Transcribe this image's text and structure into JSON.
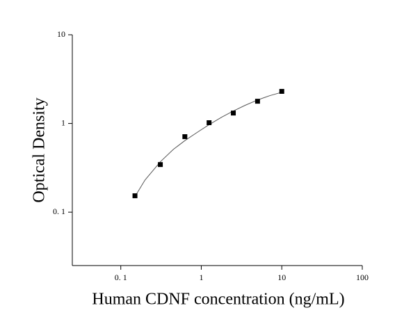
{
  "chart_data": {
    "type": "scatter",
    "x_label": "Human CDNF concentration (ng/mL)",
    "y_label": "Optical Density",
    "log_x": true,
    "log_y": true,
    "xlim": [
      0.025,
      100
    ],
    "ylim": [
      0.025,
      10
    ],
    "xticks": [
      {
        "value": 0.1,
        "label": "0. 1"
      },
      1,
      10,
      100
    ],
    "yticks": [
      {
        "value": 0.1,
        "label": "0. 1"
      },
      1,
      10
    ],
    "color": "#000000",
    "x": [
      0.15,
      0.31,
      0.625,
      1.25,
      2.5,
      5,
      10
    ],
    "values": [
      0.153,
      0.344,
      0.71,
      1.02,
      1.31,
      1.78,
      2.3
    ],
    "curve": {
      "color": "#555555",
      "x": [
        0.15,
        0.2,
        0.31,
        0.45,
        0.625,
        0.9,
        1.25,
        1.8,
        2.5,
        3.5,
        5,
        7,
        10
      ],
      "values": [
        0.15,
        0.23,
        0.37,
        0.51,
        0.64,
        0.8,
        0.97,
        1.18,
        1.38,
        1.6,
        1.84,
        2.05,
        2.25
      ]
    }
  }
}
